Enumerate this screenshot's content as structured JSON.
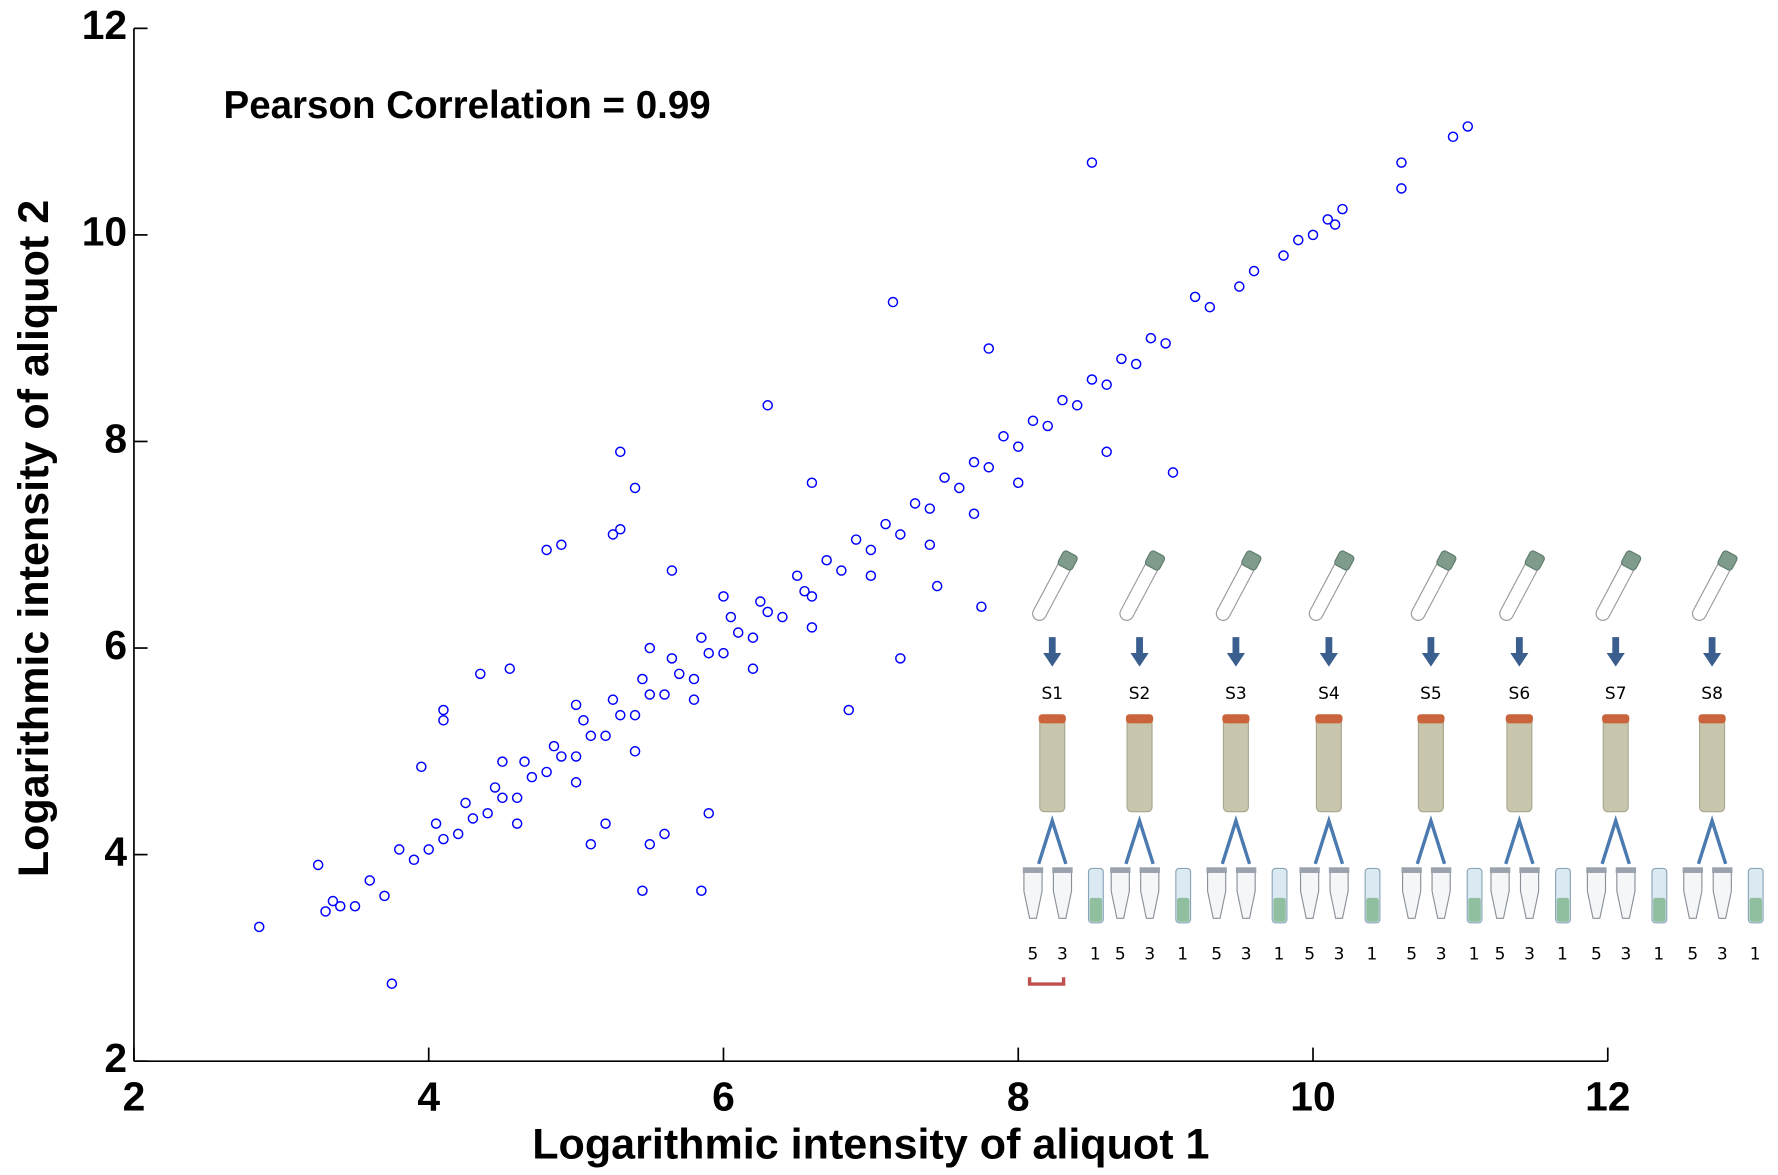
{
  "chart_data": {
    "type": "scatter",
    "annotation": "Pearson Correlation = 0.99",
    "x_label": "Logarithmic intensity of aliquot 1",
    "y_label": "Logarithmic intensity of aliquot 2",
    "xlim": [
      2,
      12
    ],
    "ylim": [
      2,
      12
    ],
    "xticks": [
      2,
      4,
      6,
      8,
      10,
      12
    ],
    "yticks": [
      2,
      4,
      6,
      8,
      10,
      12
    ],
    "marker_color": "#0000ff",
    "x": [
      3.35,
      3.5,
      3.6,
      3.7,
      3.8,
      3.9,
      4.0,
      4.05,
      4.1,
      4.2,
      4.25,
      4.3,
      4.4,
      4.45,
      4.5,
      4.6,
      4.65,
      4.7,
      4.8,
      4.85,
      4.9,
      5.0,
      5.05,
      5.1,
      5.2,
      5.25,
      5.3,
      5.4,
      5.45,
      5.5,
      5.6,
      5.65,
      5.7,
      5.8,
      5.85,
      5.9,
      6.0,
      6.05,
      6.1,
      6.2,
      6.25,
      6.3,
      6.4,
      6.5,
      6.55,
      6.6,
      6.7,
      6.8,
      6.9,
      7.0,
      7.1,
      7.2,
      7.3,
      7.4,
      7.5,
      7.6,
      7.7,
      7.8,
      7.9,
      8.0,
      8.1,
      8.2,
      8.3,
      8.4,
      8.5,
      8.6,
      8.7,
      8.8,
      8.9,
      9.0,
      9.2,
      9.3,
      9.5,
      9.6,
      9.8,
      9.9,
      10.0,
      10.1,
      10.15,
      4.6,
      5.0,
      5.4,
      5.8,
      6.2,
      6.6,
      7.0,
      4.5,
      5.0,
      5.5,
      6.0,
      7.4,
      8.0,
      7.7,
      2.85,
      3.75,
      8.5,
      7.15,
      7.8,
      6.3,
      5.3,
      5.4,
      5.25,
      5.3,
      4.8,
      4.9,
      5.65,
      6.6,
      9.05,
      8.6,
      7.75,
      7.2,
      7.45,
      6.85,
      5.9,
      5.85,
      5.45,
      5.5,
      5.6,
      5.1,
      5.2,
      4.1,
      4.1,
      4.35,
      4.55,
      3.95,
      10.6,
      10.6,
      10.2,
      11.05,
      10.95,
      3.25,
      3.3,
      3.4
    ],
    "y": [
      3.55,
      3.5,
      3.75,
      3.6,
      4.05,
      3.95,
      4.05,
      4.3,
      4.15,
      4.2,
      4.5,
      4.35,
      4.4,
      4.65,
      4.55,
      4.55,
      4.9,
      4.75,
      4.8,
      5.05,
      4.95,
      4.95,
      5.3,
      5.15,
      5.15,
      5.5,
      5.35,
      5.35,
      5.7,
      5.55,
      5.55,
      5.9,
      5.75,
      5.7,
      6.1,
      5.95,
      5.95,
      6.3,
      6.15,
      6.1,
      6.45,
      6.35,
      6.3,
      6.7,
      6.55,
      6.5,
      6.85,
      6.75,
      7.05,
      6.95,
      7.2,
      7.1,
      7.4,
      7.35,
      7.65,
      7.55,
      7.8,
      7.75,
      8.05,
      7.95,
      8.2,
      8.15,
      8.4,
      8.35,
      8.6,
      8.55,
      8.8,
      8.75,
      9.0,
      8.95,
      9.4,
      9.3,
      9.5,
      9.65,
      9.8,
      9.95,
      10.0,
      10.15,
      10.1,
      4.3,
      4.7,
      5.0,
      5.5,
      5.8,
      6.2,
      6.7,
      4.9,
      5.45,
      6.0,
      6.5,
      7.0,
      7.6,
      7.3,
      3.3,
      2.75,
      10.7,
      9.35,
      8.9,
      8.35,
      7.9,
      7.55,
      7.1,
      7.15,
      6.95,
      7.0,
      6.75,
      7.6,
      7.7,
      7.9,
      6.4,
      5.9,
      6.6,
      5.4,
      4.4,
      3.65,
      3.65,
      4.1,
      4.2,
      4.1,
      4.3,
      5.4,
      5.3,
      5.75,
      5.8,
      4.85,
      10.45,
      10.7,
      10.25,
      11.05,
      10.95,
      3.9,
      3.45,
      3.5
    ],
    "inset": {
      "samples": [
        {
          "label": "S1",
          "aliquots": [
            "5",
            "3",
            "1"
          ]
        },
        {
          "label": "S2",
          "aliquots": [
            "5",
            "3",
            "1"
          ]
        },
        {
          "label": "S3",
          "aliquots": [
            "5",
            "3",
            "1"
          ]
        },
        {
          "label": "S4",
          "aliquots": [
            "5",
            "3",
            "1"
          ]
        },
        {
          "label": "S5",
          "aliquots": [
            "5",
            "3",
            "1"
          ]
        },
        {
          "label": "S6",
          "aliquots": [
            "5",
            "3",
            "1"
          ]
        },
        {
          "label": "S7",
          "aliquots": [
            "5",
            "3",
            "1"
          ]
        },
        {
          "label": "S8",
          "aliquots": [
            "5",
            "3",
            "1"
          ]
        }
      ]
    }
  }
}
